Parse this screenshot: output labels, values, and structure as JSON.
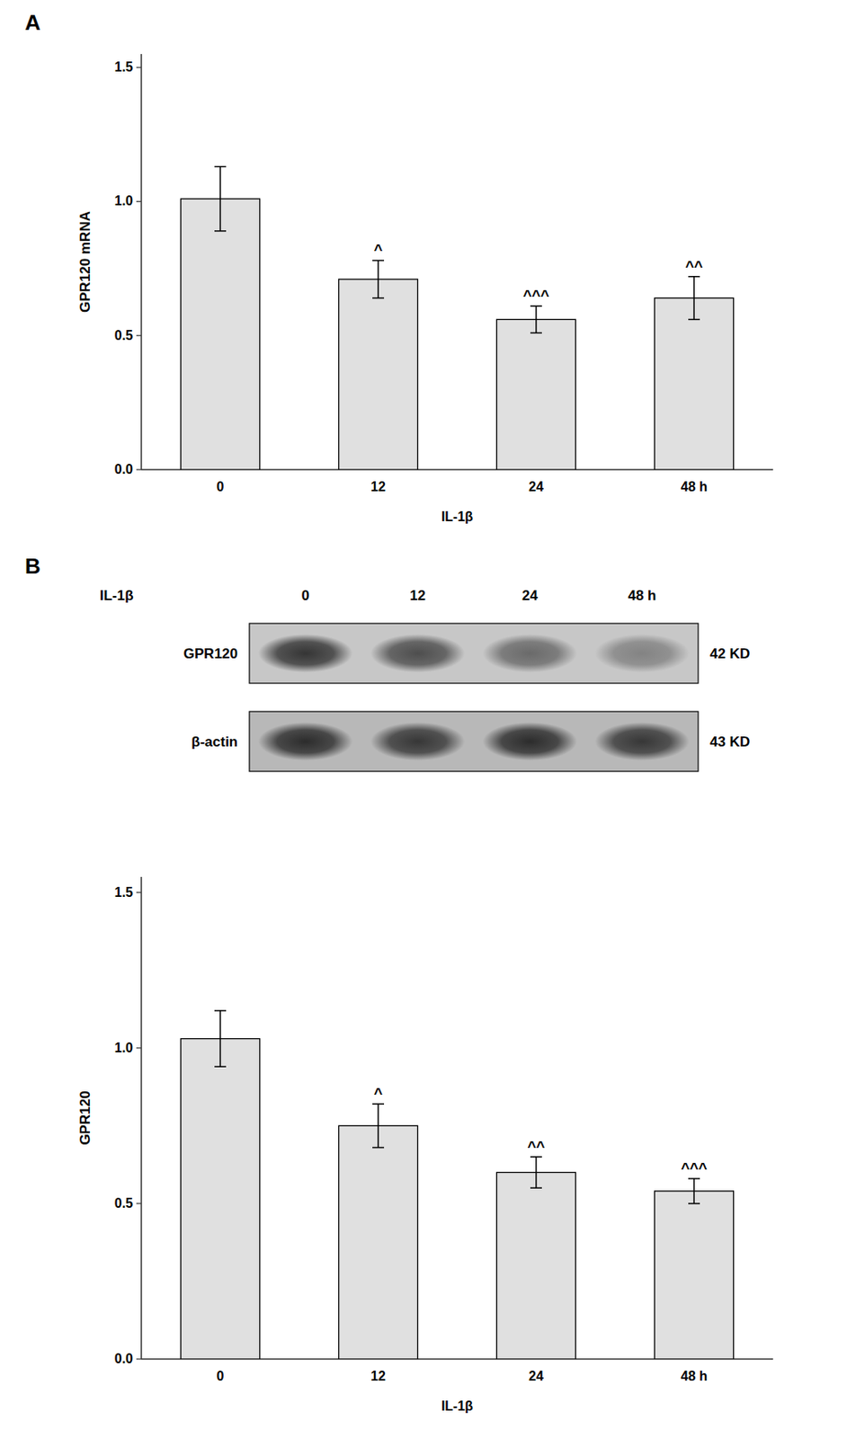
{
  "chart_data": [
    {
      "type": "bar",
      "panel_label": "A",
      "categories": [
        "0",
        "12",
        "24",
        "48 h"
      ],
      "values": [
        1.01,
        0.71,
        0.56,
        0.64
      ],
      "errors": [
        0.12,
        0.07,
        0.05,
        0.08
      ],
      "annotations": [
        {
          "category": "12",
          "text": "^"
        },
        {
          "category": "24",
          "text": "^^^"
        },
        {
          "category": "48 h",
          "text": "^^"
        }
      ],
      "ylabel": "GPR120 mRNA",
      "xlabel": "IL-1β",
      "ylim": [
        0,
        1.55
      ],
      "yticks": [
        {
          "value": 0,
          "label": "0.0"
        },
        0.5,
        {
          "value": 1.0,
          "label": "1.0"
        },
        1.5
      ],
      "color": "#e0e0e0",
      "grid": false
    },
    {
      "type": "western_blot",
      "panel_label": "B",
      "xlabel": "IL-1β",
      "categories": [
        "0",
        "12",
        "24",
        "48 h"
      ],
      "series": [
        {
          "name": "GPR120",
          "kd": "42 KD",
          "values": [
            0.82,
            0.68,
            0.52,
            0.38
          ]
        },
        {
          "name": "β-actin",
          "kd": "43 KD",
          "values": [
            0.78,
            0.72,
            0.78,
            0.72
          ]
        }
      ]
    },
    {
      "type": "bar",
      "categories": [
        "0",
        "12",
        "24",
        "48 h"
      ],
      "values": [
        1.03,
        0.75,
        0.6,
        0.54
      ],
      "errors": [
        0.09,
        0.07,
        0.05,
        0.04
      ],
      "annotations": [
        {
          "category": "12",
          "text": "^"
        },
        {
          "category": "24",
          "text": "^^"
        },
        {
          "category": "48 h",
          "text": "^^^"
        }
      ],
      "ylabel": "GPR120",
      "xlabel": "IL-1β",
      "ylim": [
        0,
        1.55
      ],
      "yticks": [
        {
          "value": 0,
          "label": "0.0"
        },
        0.5,
        {
          "value": 1.0,
          "label": "1.0"
        },
        1.5
      ],
      "color": "#e0e0e0",
      "grid": false
    }
  ]
}
